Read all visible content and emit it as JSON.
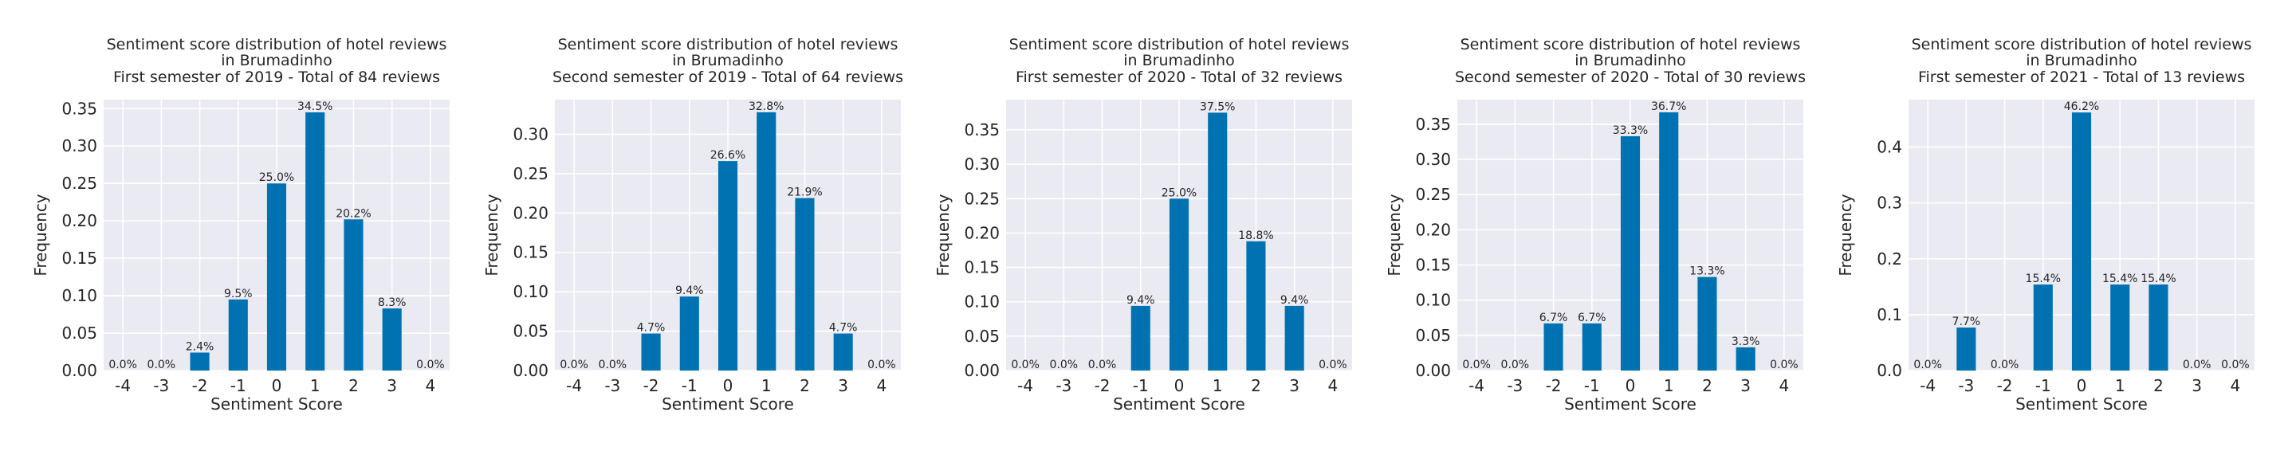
{
  "figure": {
    "background": "#ffffff",
    "plot_background": "#eaeaf2",
    "grid_color": "#ffffff",
    "bar_color": "#0072b2"
  },
  "chart_data": [
    {
      "type": "bar",
      "title_lines": [
        "Sentiment score distribution of hotel reviews",
        "in Brumadinho",
        "First semester of 2019 - Total of 84 reviews"
      ],
      "xlabel": "Sentiment Score",
      "ylabel": "Frequency",
      "categories": [
        "-4",
        "-3",
        "-2",
        "-1",
        "0",
        "1",
        "2",
        "3",
        "4"
      ],
      "values": [
        0.0,
        0.0,
        0.024,
        0.095,
        0.25,
        0.345,
        0.202,
        0.083,
        0.0
      ],
      "bar_labels": [
        "0.0%",
        "0.0%",
        "2.4%",
        "9.5%",
        "25.0%",
        "34.5%",
        "20.2%",
        "8.3%",
        "0.0%"
      ],
      "ylim": [
        0,
        0.362
      ],
      "yticks": [
        0.0,
        0.05,
        0.1,
        0.15,
        0.2,
        0.25,
        0.3,
        0.35
      ],
      "ytick_labels": [
        "0.00",
        "0.05",
        "0.10",
        "0.15",
        "0.20",
        "0.25",
        "0.30",
        "0.35"
      ],
      "grid": true
    },
    {
      "type": "bar",
      "title_lines": [
        "Sentiment score distribution of hotel reviews",
        "in Brumadinho",
        "Second semester of 2019 - Total of 64 reviews"
      ],
      "xlabel": "Sentiment Score",
      "ylabel": "Frequency",
      "categories": [
        "-4",
        "-3",
        "-2",
        "-1",
        "0",
        "1",
        "2",
        "3",
        "4"
      ],
      "values": [
        0.0,
        0.0,
        0.047,
        0.094,
        0.266,
        0.328,
        0.219,
        0.047,
        0.0
      ],
      "bar_labels": [
        "0.0%",
        "0.0%",
        "4.7%",
        "9.4%",
        "26.6%",
        "32.8%",
        "21.9%",
        "4.7%",
        "0.0%"
      ],
      "ylim": [
        0,
        0.344
      ],
      "yticks": [
        0.0,
        0.05,
        0.1,
        0.15,
        0.2,
        0.25,
        0.3
      ],
      "ytick_labels": [
        "0.00",
        "0.05",
        "0.10",
        "0.15",
        "0.20",
        "0.25",
        "0.30"
      ],
      "grid": true
    },
    {
      "type": "bar",
      "title_lines": [
        "Sentiment score distribution of hotel reviews",
        "in Brumadinho",
        "First semester of 2020 - Total of 32 reviews"
      ],
      "xlabel": "Sentiment Score",
      "ylabel": "Frequency",
      "categories": [
        "-4",
        "-3",
        "-2",
        "-1",
        "0",
        "1",
        "2",
        "3",
        "4"
      ],
      "values": [
        0.0,
        0.0,
        0.0,
        0.094,
        0.25,
        0.375,
        0.188,
        0.094,
        0.0
      ],
      "bar_labels": [
        "0.0%",
        "0.0%",
        "0.0%",
        "9.4%",
        "25.0%",
        "37.5%",
        "18.8%",
        "9.4%",
        "0.0%"
      ],
      "ylim": [
        0,
        0.394
      ],
      "yticks": [
        0.0,
        0.05,
        0.1,
        0.15,
        0.2,
        0.25,
        0.3,
        0.35
      ],
      "ytick_labels": [
        "0.00",
        "0.05",
        "0.10",
        "0.15",
        "0.20",
        "0.25",
        "0.30",
        "0.35"
      ],
      "grid": true
    },
    {
      "type": "bar",
      "title_lines": [
        "Sentiment score distribution of hotel reviews",
        "in Brumadinho",
        "Second semester of 2020 - Total of 30 reviews"
      ],
      "xlabel": "Sentiment Score",
      "ylabel": "Frequency",
      "categories": [
        "-4",
        "-3",
        "-2",
        "-1",
        "0",
        "1",
        "2",
        "3",
        "4"
      ],
      "values": [
        0.0,
        0.0,
        0.067,
        0.067,
        0.333,
        0.367,
        0.133,
        0.033,
        0.0
      ],
      "bar_labels": [
        "0.0%",
        "0.0%",
        "6.7%",
        "6.7%",
        "33.3%",
        "36.7%",
        "13.3%",
        "3.3%",
        "0.0%"
      ],
      "ylim": [
        0,
        0.385
      ],
      "yticks": [
        0.0,
        0.05,
        0.1,
        0.15,
        0.2,
        0.25,
        0.3,
        0.35
      ],
      "ytick_labels": [
        "0.00",
        "0.05",
        "0.10",
        "0.15",
        "0.20",
        "0.25",
        "0.30",
        "0.35"
      ],
      "grid": true
    },
    {
      "type": "bar",
      "title_lines": [
        "Sentiment score distribution of hotel reviews",
        "in Brumadinho",
        "First semester of 2021 - Total of 13 reviews"
      ],
      "xlabel": "Sentiment Score",
      "ylabel": "Frequency",
      "categories": [
        "-4",
        "-3",
        "-2",
        "-1",
        "0",
        "1",
        "2",
        "3",
        "4"
      ],
      "values": [
        0.0,
        0.077,
        0.0,
        0.154,
        0.462,
        0.154,
        0.154,
        0.0,
        0.0
      ],
      "bar_labels": [
        "0.0%",
        "7.7%",
        "0.0%",
        "15.4%",
        "46.2%",
        "15.4%",
        "15.4%",
        "0.0%",
        "0.0%"
      ],
      "ylim": [
        0,
        0.485
      ],
      "yticks": [
        0.0,
        0.1,
        0.2,
        0.3,
        0.4
      ],
      "ytick_labels": [
        "0.0",
        "0.1",
        "0.2",
        "0.3",
        "0.4"
      ],
      "grid": true
    }
  ]
}
